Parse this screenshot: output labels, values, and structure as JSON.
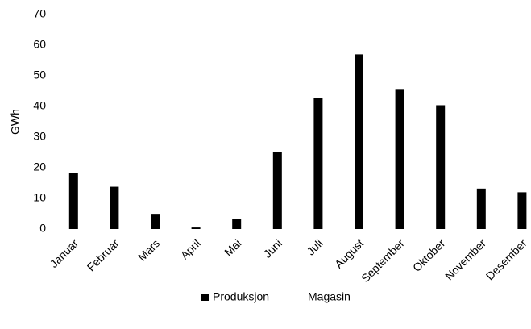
{
  "chart_data": {
    "type": "bar",
    "y_label": "GWh",
    "categories": [
      "Januar",
      "Februar",
      "Mars",
      "April",
      "Mai",
      "Juni",
      "Juli",
      "August",
      "September",
      "Oktober",
      "November",
      "Desember"
    ],
    "series": [
      {
        "name": "Produksjon",
        "color": "#000000",
        "values": [
          18.2,
          13.8,
          4.7,
          0.5,
          3.2,
          25,
          42.8,
          57,
          45.7,
          40.4,
          13.2,
          12
        ]
      },
      {
        "name": "Magasin",
        "color": "#ffffff",
        "values": [
          null,
          null,
          null,
          null,
          null,
          null,
          null,
          null,
          null,
          null,
          null,
          null
        ]
      }
    ],
    "ylim": [
      0,
      70
    ],
    "yticks": [
      0,
      10,
      20,
      30,
      40,
      50,
      60,
      70
    ],
    "grid": false
  }
}
